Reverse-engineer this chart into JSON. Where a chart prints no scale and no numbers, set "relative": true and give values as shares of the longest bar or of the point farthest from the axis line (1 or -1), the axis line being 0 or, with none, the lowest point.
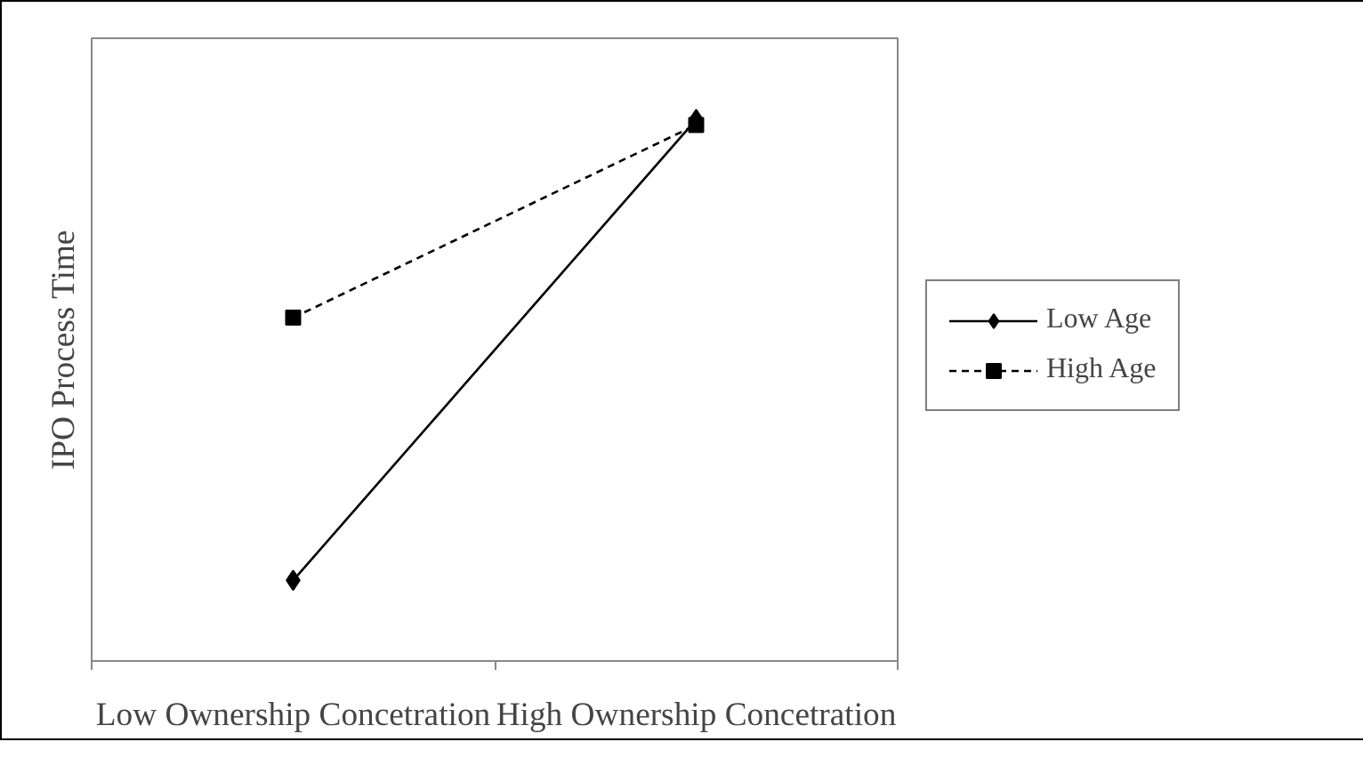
{
  "chart_data": {
    "type": "line",
    "ylabel": "IPO Process Time",
    "categories": [
      "Low Ownership Concetration",
      "High Ownership Concetration"
    ],
    "relative": true,
    "legend": "right",
    "series": [
      {
        "name": "Low Age",
        "color": "#000000",
        "marker": "diamond",
        "line_style": "solid",
        "values": [
          0.149,
          1
        ]
      },
      {
        "name": "High Age",
        "color": "#000000",
        "marker": "square",
        "line_style": "dashed",
        "values": [
          0.634,
          0.99
        ]
      }
    ]
  }
}
